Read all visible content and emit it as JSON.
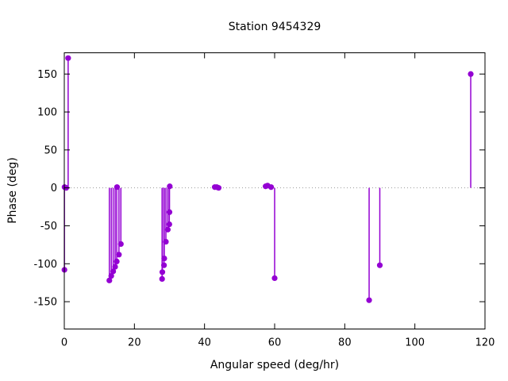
{
  "chart_data": {
    "type": "scatter",
    "style": "stem (impulses from y=0 + filled circle points)",
    "title": "Station 9454329",
    "xlabel": "Angular speed (deg/hr)",
    "ylabel": "Phase (deg)",
    "xlim": [
      0,
      120
    ],
    "ylim": [
      -186,
      178
    ],
    "x_ticks": [
      {
        "v": 0,
        "label": "0"
      },
      {
        "v": 20,
        "label": "20"
      },
      {
        "v": 40,
        "label": "40"
      },
      {
        "v": 60,
        "label": "60"
      },
      {
        "v": 80,
        "label": "80"
      },
      {
        "v": 100,
        "label": "100"
      },
      {
        "v": 120,
        "label": "120"
      }
    ],
    "y_ticks": [
      {
        "v": 150,
        "label": "150"
      },
      {
        "v": 100,
        "label": "100"
      },
      {
        "v": 50,
        "label": "50"
      },
      {
        "v": 0,
        "label": "0"
      },
      {
        "v": -50,
        "label": "-50"
      },
      {
        "v": -100,
        "label": "-100"
      },
      {
        "v": -150,
        "label": "-150"
      }
    ],
    "grid": "dotted gray line at y=0 only",
    "legend": "none",
    "marker_color": "#9400d3",
    "points": [
      [
        0.041,
        -108
      ],
      [
        0.082,
        1
      ],
      [
        0.544,
        0
      ],
      [
        1.098,
        171
      ],
      [
        12.854,
        -122
      ],
      [
        13.399,
        -116
      ],
      [
        13.943,
        -110
      ],
      [
        14.497,
        -104
      ],
      [
        14.959,
        -97
      ],
      [
        15.041,
        1
      ],
      [
        15.585,
        -88
      ],
      [
        16.139,
        -74
      ],
      [
        27.895,
        -120
      ],
      [
        27.968,
        -111
      ],
      [
        28.439,
        -102
      ],
      [
        28.512,
        -93
      ],
      [
        28.984,
        -71
      ],
      [
        29.528,
        -55
      ],
      [
        29.959,
        -48
      ],
      [
        30.0,
        -32
      ],
      [
        30.082,
        2
      ],
      [
        42.927,
        1
      ],
      [
        43.476,
        1
      ],
      [
        44.025,
        0
      ],
      [
        57.423,
        2
      ],
      [
        57.968,
        3
      ],
      [
        58.984,
        1
      ],
      [
        60.0,
        -119
      ],
      [
        86.952,
        -148
      ],
      [
        90.0,
        -102
      ],
      [
        115.936,
        150
      ]
    ]
  }
}
